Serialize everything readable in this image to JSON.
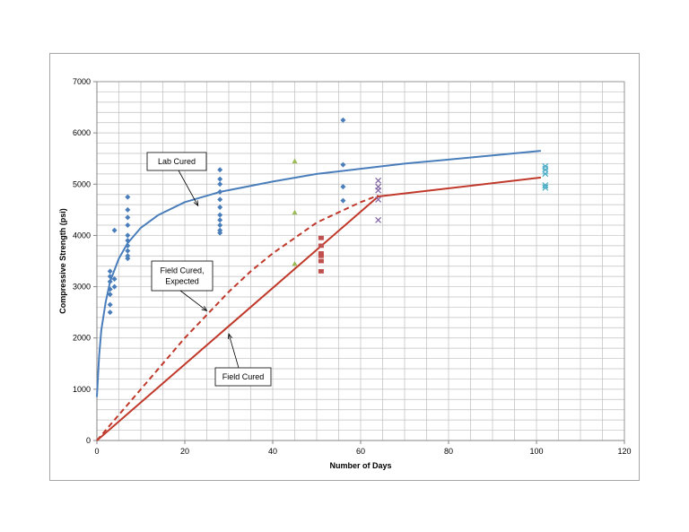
{
  "chart_data": {
    "type": "scatter",
    "title": "",
    "xlabel": "Number of Days",
    "ylabel": "Compressive Strength (psi)",
    "xlim": [
      0,
      120
    ],
    "ylim": [
      0,
      7000
    ],
    "x_ticks": [
      0,
      20,
      40,
      60,
      80,
      100,
      120
    ],
    "y_ticks": [
      0,
      1000,
      2000,
      3000,
      4000,
      5000,
      6000,
      7000
    ],
    "x_tick_labels": [
      "0",
      "20",
      "40",
      "60",
      "80",
      "100",
      "120"
    ],
    "y_tick_labels": [
      "0",
      "1000",
      "2000",
      "3000",
      "4000",
      "5000",
      "6000",
      "7000"
    ],
    "grid": true,
    "legend": "none",
    "lines": [
      {
        "color": "#4a7ebb",
        "style": "solid",
        "points": [
          [
            0,
            850
          ],
          [
            0.5,
            1650
          ],
          [
            1,
            2150
          ],
          [
            2,
            2700
          ],
          [
            3,
            3100
          ],
          [
            5,
            3550
          ],
          [
            7,
            3850
          ],
          [
            10,
            4150
          ],
          [
            14,
            4400
          ],
          [
            20,
            4650
          ],
          [
            28,
            4850
          ],
          [
            40,
            5050
          ],
          [
            50,
            5200
          ],
          [
            60,
            5300
          ],
          [
            70,
            5400
          ],
          [
            80,
            5480
          ],
          [
            90,
            5560
          ],
          [
            101,
            5650
          ]
        ]
      },
      {
        "color": "#c0392b",
        "style": "dashed",
        "points": [
          [
            0,
            0
          ],
          [
            5,
            500
          ],
          [
            10,
            1000
          ],
          [
            15,
            1500
          ],
          [
            20,
            2000
          ],
          [
            25,
            2450
          ],
          [
            30,
            2900
          ],
          [
            35,
            3300
          ],
          [
            40,
            3650
          ],
          [
            45,
            3950
          ],
          [
            50,
            4250
          ],
          [
            55,
            4450
          ],
          [
            60,
            4650
          ],
          [
            64,
            4780
          ]
        ]
      },
      {
        "color": "#c0392b",
        "style": "solid",
        "points": [
          [
            0,
            0
          ],
          [
            64,
            4760
          ],
          [
            101,
            5130
          ]
        ]
      }
    ],
    "series": [
      {
        "marker": "diamond",
        "color": "#4a7ebb",
        "points": [
          [
            3,
            3300
          ],
          [
            3,
            3200
          ],
          [
            3,
            3100
          ],
          [
            3,
            2950
          ],
          [
            3,
            2850
          ],
          [
            3,
            2650
          ],
          [
            3,
            2500
          ],
          [
            4,
            3150
          ],
          [
            4,
            3000
          ],
          [
            4,
            4100
          ],
          [
            7,
            4750
          ],
          [
            7,
            4500
          ],
          [
            7,
            4350
          ],
          [
            7,
            4200
          ],
          [
            7,
            4000
          ],
          [
            7,
            3900
          ],
          [
            7,
            3800
          ],
          [
            7,
            3700
          ],
          [
            7,
            3600
          ],
          [
            7,
            3550
          ],
          [
            28,
            5280
          ],
          [
            28,
            5100
          ],
          [
            28,
            5000
          ],
          [
            28,
            4850
          ],
          [
            28,
            4700
          ],
          [
            28,
            4550
          ],
          [
            28,
            4400
          ],
          [
            28,
            4300
          ],
          [
            28,
            4200
          ],
          [
            28,
            4100
          ],
          [
            28,
            4050
          ],
          [
            56,
            6250
          ],
          [
            56,
            5380
          ],
          [
            56,
            4950
          ],
          [
            56,
            4680
          ]
        ]
      },
      {
        "marker": "triangle",
        "color": "#9bbb59",
        "points": [
          [
            45,
            5450
          ],
          [
            45,
            4450
          ],
          [
            45,
            3450
          ]
        ]
      },
      {
        "marker": "square",
        "color": "#c0504d",
        "points": [
          [
            51,
            3950
          ],
          [
            51,
            3800
          ],
          [
            51,
            3650
          ],
          [
            51,
            3600
          ],
          [
            51,
            3500
          ],
          [
            51,
            3300
          ]
        ]
      },
      {
        "marker": "x",
        "color": "#8064a2",
        "points": [
          [
            64,
            5070
          ],
          [
            64,
            4950
          ],
          [
            64,
            4880
          ],
          [
            64,
            4700
          ],
          [
            64,
            4300
          ]
        ]
      },
      {
        "marker": "asterisk",
        "color": "#4bacc6",
        "points": [
          [
            102,
            5350
          ],
          [
            102,
            5280
          ],
          [
            102,
            5200
          ],
          [
            102,
            4980
          ],
          [
            102,
            4930
          ]
        ]
      }
    ],
    "annotations": [
      {
        "text": [
          "Lab Cured"
        ],
        "arrow_to": [
          23,
          4580
        ]
      },
      {
        "text": [
          "Field Cured,",
          "Expected"
        ],
        "arrow_to": [
          25,
          2530
        ]
      },
      {
        "text": [
          "Field Cured"
        ],
        "arrow_to": [
          30,
          2080
        ]
      }
    ]
  }
}
